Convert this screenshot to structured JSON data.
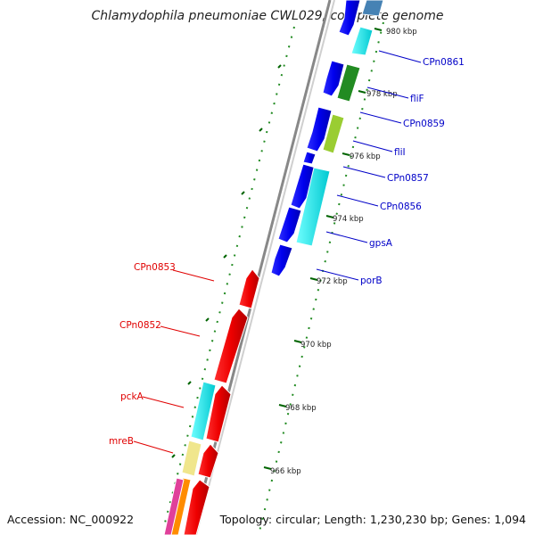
{
  "title": "Chlamydophila pneumoniae CWL029, complete genome",
  "footer": {
    "accession": "Accession: NC_000922",
    "topology": "Topology: circular; Length: 1,230,230 bp; Genes: 1,094"
  },
  "ticks": [
    "980 kbp",
    "978 kbp",
    "976 kbp",
    "974 kbp",
    "972 kbp",
    "970 kbp",
    "968 kbp",
    "966 kbp"
  ],
  "features_forward": [
    "CPn0861",
    "fliF",
    "CPn0859",
    "fliI",
    "CPn0857",
    "CPn0856",
    "gpsA",
    "porB"
  ],
  "features_reverse": [
    "CPn0853",
    "CPn0852",
    "pckA",
    "mreB"
  ],
  "colors": {
    "forward_gene": "#0000ff",
    "reverse_gene": "#ff0000",
    "cyan": "#00e5ee",
    "green": "#228b22",
    "lime": "#9acd32",
    "khaki": "#f0e68c",
    "tick_green": "#006400",
    "backbone": "#808080"
  }
}
